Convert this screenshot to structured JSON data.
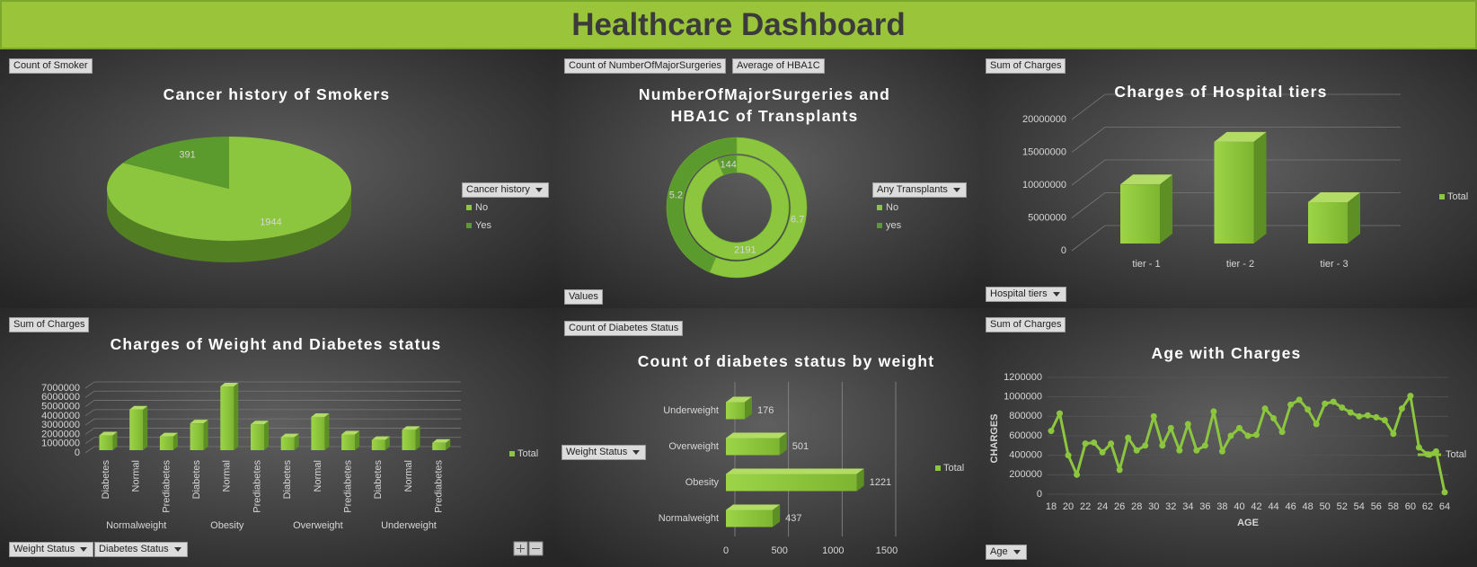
{
  "header": {
    "title": "Healthcare Dashboard"
  },
  "chart_data": [
    {
      "type": "pie",
      "title": "Cancer history of Smokers",
      "buttons": [
        "Count of Smoker"
      ],
      "legend_title": "Cancer history",
      "categories": [
        "No",
        "Yes"
      ],
      "values": [
        1944,
        391
      ],
      "colors": [
        "#8cc63f",
        "#5b9a2d"
      ]
    },
    {
      "type": "doughnut",
      "title": "NumberOfMajorSurgeries and HBA1C of Transplants",
      "buttons": [
        "Values"
      ],
      "legend_title": "Any Transplants",
      "categories": [
        "No",
        "yes"
      ],
      "colors": [
        "#8cc63f",
        "#5b9a2d"
      ],
      "series": [
        {
          "name": "Count of NumberOfMajorSurgeries",
          "values": [
            2191,
            144
          ]
        },
        {
          "name": "Average of HBA1C",
          "values": [
            6.7,
            5.2
          ]
        }
      ]
    },
    {
      "type": "bar",
      "title": "Charges of Hospital tiers",
      "buttons": [
        "Sum of Charges",
        "Hospital tiers"
      ],
      "categories": [
        "tier - 1",
        "tier - 2",
        "tier - 3"
      ],
      "series": [
        {
          "name": "Total",
          "color": "#8cc63f",
          "values": [
            9000000,
            15500000,
            6300000
          ]
        }
      ],
      "ylim": [
        0,
        20000000
      ],
      "yticks": [
        0,
        5000000,
        10000000,
        15000000,
        20000000
      ],
      "grid": true
    },
    {
      "type": "bar",
      "title": "Charges of Weight and Diabetes status",
      "buttons": [
        "Sum of Charges",
        "Weight Status",
        "Diabetes Status"
      ],
      "groups": [
        "Normalweight",
        "Obesity",
        "Overweight",
        "Underweight"
      ],
      "categories": [
        "Diabetes",
        "Normal",
        "Prediabetes",
        "Diabetes",
        "Normal",
        "Prediabetes",
        "Diabetes",
        "Normal",
        "Prediabetes",
        "Diabetes",
        "Normal",
        "Prediabetes"
      ],
      "series": [
        {
          "name": "Total",
          "color": "#8cc63f",
          "values": [
            1600000,
            4400000,
            1500000,
            2900000,
            6900000,
            2800000,
            1400000,
            3600000,
            1700000,
            1100000,
            2200000,
            800000
          ]
        }
      ],
      "ylim": [
        0,
        7000000
      ],
      "yticks": [
        0,
        1000000,
        2000000,
        3000000,
        4000000,
        5000000,
        6000000,
        7000000
      ],
      "grid": true
    },
    {
      "type": "barh",
      "title": "Count of diabetes status by weight",
      "buttons": [
        "Count of Diabetes Status",
        "Weight Status"
      ],
      "categories": [
        "Normalweight",
        "Obesity",
        "Overweight",
        "Underweight"
      ],
      "series": [
        {
          "name": "Total",
          "color": "#8cc63f",
          "values": [
            437,
            1221,
            501,
            176
          ]
        }
      ],
      "xlim": [
        0,
        1500
      ],
      "xticks": [
        0,
        500,
        1000,
        1500
      ],
      "grid": true
    },
    {
      "type": "line",
      "title": "Age with Charges",
      "buttons": [
        "Sum of Charges",
        "Age"
      ],
      "xlabel": "AGE",
      "ylabel": "CHARGES",
      "x": [
        18,
        19,
        20,
        21,
        22,
        23,
        24,
        25,
        26,
        27,
        28,
        29,
        30,
        31,
        32,
        33,
        34,
        35,
        36,
        37,
        38,
        39,
        40,
        41,
        42,
        43,
        44,
        45,
        46,
        47,
        48,
        49,
        50,
        51,
        52,
        53,
        54,
        55,
        56,
        57,
        58,
        59,
        60,
        61,
        62,
        63,
        64
      ],
      "xlim": [
        18,
        64
      ],
      "xticks": [
        18,
        20,
        22,
        24,
        26,
        28,
        30,
        32,
        34,
        36,
        38,
        40,
        42,
        44,
        46,
        48,
        50,
        52,
        54,
        56,
        58,
        60,
        62,
        64
      ],
      "series": [
        {
          "name": "Total",
          "color": "#8cc63f",
          "values": [
            650000,
            830000,
            400000,
            200000,
            520000,
            530000,
            430000,
            520000,
            250000,
            580000,
            450000,
            500000,
            800000,
            500000,
            680000,
            450000,
            720000,
            450000,
            500000,
            850000,
            440000,
            600000,
            680000,
            600000,
            610000,
            880000,
            780000,
            640000,
            920000,
            970000,
            870000,
            720000,
            930000,
            950000,
            890000,
            840000,
            800000,
            810000,
            790000,
            760000,
            620000,
            880000,
            1010000,
            480000,
            410000,
            440000,
            20000
          ]
        }
      ],
      "ylim": [
        0,
        1200000
      ],
      "yticks": [
        0,
        200000,
        400000,
        600000,
        800000,
        1000000,
        1200000
      ],
      "grid": true
    }
  ]
}
